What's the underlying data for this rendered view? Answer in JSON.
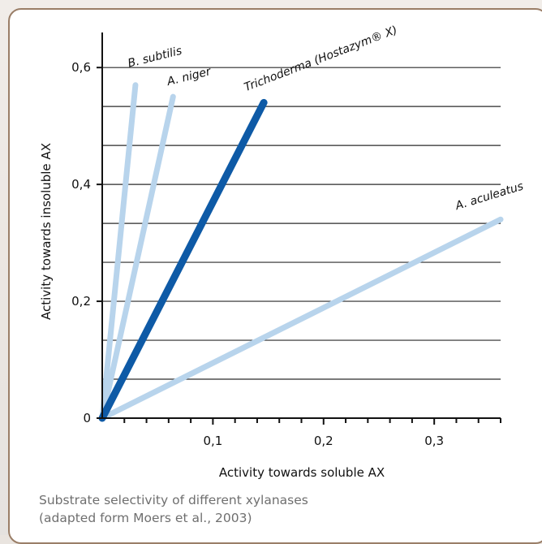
{
  "chart_data": {
    "type": "line",
    "xlabel": "Activity towards soluble AX",
    "ylabel": "Activity towards insoluble AX",
    "xlim": [
      0,
      0.36
    ],
    "ylim": [
      0,
      0.66
    ],
    "x_ticks": [
      {
        "value": 0.1,
        "label": "0,1"
      },
      {
        "value": 0.2,
        "label": "0,2"
      },
      {
        "value": 0.3,
        "label": "0,3"
      }
    ],
    "y_ticks": [
      {
        "value": 0,
        "label": "0"
      },
      {
        "value": 0.2,
        "label": "0,2"
      },
      {
        "value": 0.4,
        "label": "0,4"
      },
      {
        "value": 0.6,
        "label": "0,6"
      }
    ],
    "grid": "horizontal",
    "series": [
      {
        "name": "B. subtilis",
        "points": [
          [
            0,
            0
          ],
          [
            0.03,
            0.57
          ]
        ],
        "color": "#b8d4ec"
      },
      {
        "name": "A. niger",
        "points": [
          [
            0,
            0
          ],
          [
            0.064,
            0.55
          ]
        ],
        "color": "#b8d4ec"
      },
      {
        "name": "A. aculeatus",
        "points": [
          [
            0,
            0
          ],
          [
            0.36,
            0.34
          ]
        ],
        "color": "#b8d4ec"
      },
      {
        "name": "Trichoderma (Hostazym® X)",
        "points": [
          [
            0,
            0
          ],
          [
            0.146,
            0.54
          ]
        ],
        "color": "#0e5aa6"
      }
    ]
  },
  "caption": {
    "line1": "Substrate selectivity of different xylanases",
    "line2": "(adapted form Moers et al., 2003)"
  }
}
